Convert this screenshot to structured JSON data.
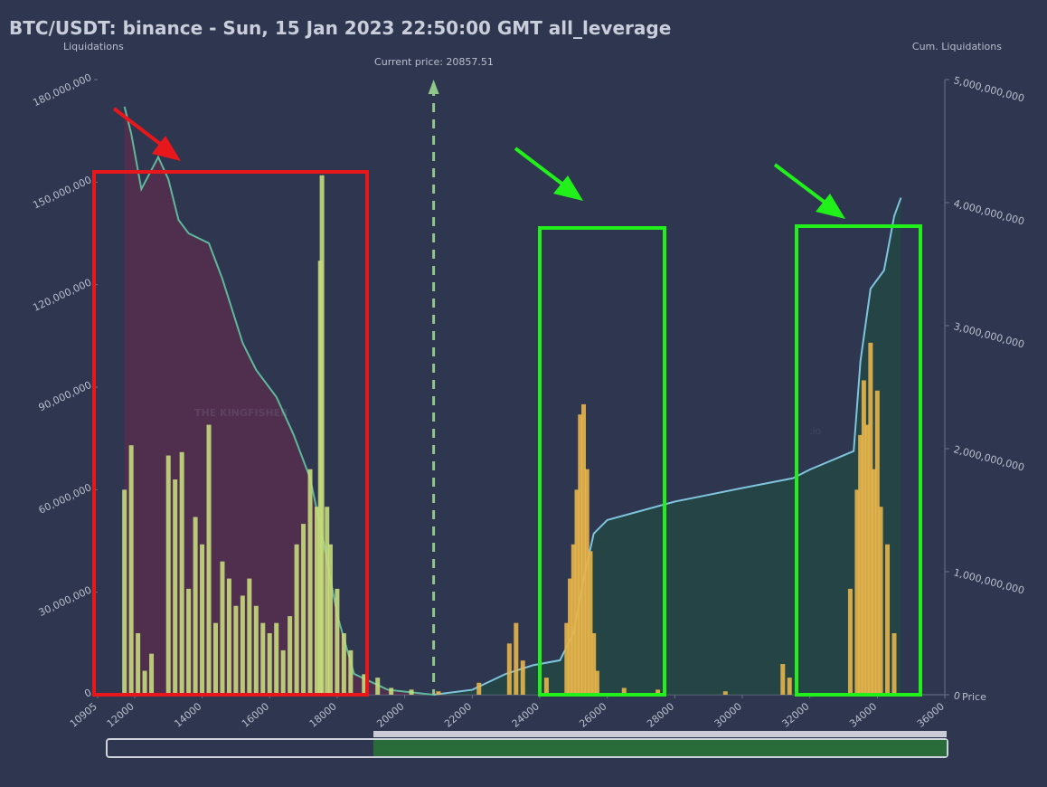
{
  "chart_data": {
    "type": "liquidation",
    "title": "BTC/USDT: binance - Sun, 15 Jan 2023 22:50:00 GMT all_leverage",
    "y_label": "Liquidations",
    "y2_label": "Cum. Liquidations",
    "x_label": "Price",
    "annotation": "Current price: 20857.51",
    "current_price": 20857.51,
    "watermark": "THE KINGFISHER",
    "watermark_suffix": ".io",
    "xlim": [
      10905,
      36000
    ],
    "xticks": [
      10905,
      12000,
      14000,
      16000,
      18000,
      20000,
      22000,
      24000,
      26000,
      28000,
      30000,
      32000,
      34000,
      36000
    ],
    "ylim": [
      0,
      180000000
    ],
    "yticks": [
      0,
      {
        "value": 30000000,
        "label": "30,000,000"
      },
      {
        "value": 60000000,
        "label": "60,000,000"
      },
      {
        "value": 90000000,
        "label": "90,000,000"
      },
      {
        "value": 120000000,
        "label": "120,000,000"
      },
      {
        "value": 150000000,
        "label": "150,000,000"
      },
      {
        "value": 180000000,
        "label": "180,000,000"
      }
    ],
    "y2lim": [
      0,
      5000000000
    ],
    "y2ticks": [
      0,
      {
        "value": 1000000000,
        "label": "1,000,000,000"
      },
      {
        "value": 2000000000,
        "label": "2,000,000,000"
      },
      {
        "value": 3000000000,
        "label": "3,000,000,000"
      },
      {
        "value": 4000000000,
        "label": "4,000,000,000"
      },
      {
        "value": 5000000000,
        "label": "5,000,000,000"
      }
    ],
    "series": [
      {
        "kind": "bar",
        "color": "#c5da7c",
        "x": [
          11700,
          11900,
          12100,
          12300,
          12500,
          13000,
          13200,
          13400,
          13600,
          13800,
          14000,
          14200,
          14400,
          14600,
          14800,
          15000,
          15200,
          15400,
          15600,
          15800,
          16000,
          16200,
          16400,
          16600,
          16800,
          17000,
          17200,
          17400,
          17500,
          17550,
          17700,
          17800,
          18000,
          18200,
          18400,
          18800,
          19200,
          19600,
          20200
        ],
        "values": [
          60000000,
          73000000,
          18000000,
          7000000,
          12000000,
          70000000,
          63000000,
          71000000,
          31000000,
          52000000,
          44000000,
          79000000,
          21000000,
          39000000,
          34000000,
          26000000,
          29000000,
          34000000,
          26000000,
          21000000,
          18000000,
          21000000,
          13000000,
          23000000,
          44000000,
          50000000,
          66000000,
          55000000,
          127000000,
          152000000,
          55000000,
          44000000,
          31000000,
          18000000,
          13000000,
          6000000,
          5000000,
          2000000,
          1500000
        ]
      },
      {
        "kind": "bar",
        "color": "#e7b54a",
        "x": [
          21000,
          22200,
          23100,
          23300,
          23500,
          24200,
          24800,
          24900,
          25000,
          25100,
          25200,
          25300,
          25400,
          25500,
          25600,
          25700,
          26500,
          27500,
          29500,
          31200,
          31400,
          33200,
          33400,
          33500,
          33600,
          33700,
          33800,
          33900,
          34000,
          34100,
          34300,
          34500
        ],
        "values": [
          1000000,
          3500000,
          15000000,
          21000000,
          10000000,
          5000000,
          21000000,
          34000000,
          44000000,
          60000000,
          82000000,
          85000000,
          66000000,
          42000000,
          18000000,
          7000000,
          2000000,
          1500000,
          1000000,
          9000000,
          5000000,
          31000000,
          60000000,
          76000000,
          92000000,
          79000000,
          103000000,
          66000000,
          89000000,
          55000000,
          44000000,
          18000000
        ]
      },
      {
        "kind": "line",
        "axis": "y2",
        "color": "#5fb89a",
        "fill": "rgba(110,40,75,0.55)",
        "x": [
          11700,
          11900,
          12200,
          12700,
          13000,
          13300,
          13600,
          14200,
          14600,
          15200,
          15600,
          16200,
          16700,
          17200,
          17600,
          18000,
          18500,
          19500,
          20857.51
        ],
        "values": [
          4780000000,
          4560000000,
          4110000000,
          4370000000,
          4190000000,
          3860000000,
          3750000000,
          3670000000,
          3380000000,
          2860000000,
          2640000000,
          2420000000,
          2120000000,
          1760000000,
          1240000000,
          650000000,
          170000000,
          40000000,
          0
        ]
      },
      {
        "kind": "line",
        "axis": "y2",
        "color": "#7fc4dc",
        "fill": "rgba(30,80,62,0.55)",
        "x": [
          20857.51,
          22000,
          23000,
          23800,
          24600,
          25000,
          25300,
          25600,
          26000,
          28000,
          30000,
          31500,
          32000,
          33300,
          33500,
          33800,
          34200,
          34500,
          34700
        ],
        "values": [
          0,
          40000000,
          170000000,
          240000000,
          280000000,
          500000000,
          940000000,
          1310000000,
          1420000000,
          1570000000,
          1680000000,
          1760000000,
          1830000000,
          1980000000,
          2710000000,
          3300000000,
          3450000000,
          3890000000,
          4040000000
        ]
      }
    ]
  }
}
